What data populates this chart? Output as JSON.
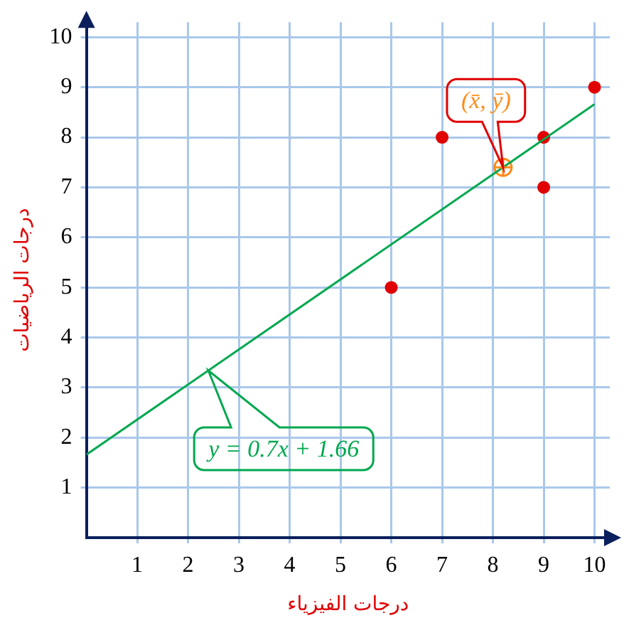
{
  "chart_data": {
    "type": "scatter",
    "xlabel": "درجات الفيزياء",
    "ylabel": "درجات الرياضيات",
    "xlim": [
      0,
      10.3
    ],
    "ylim": [
      0,
      10.3
    ],
    "xticks": [
      1,
      2,
      3,
      4,
      5,
      6,
      7,
      8,
      9,
      10
    ],
    "yticks": [
      1,
      2,
      3,
      4,
      5,
      6,
      7,
      8,
      9,
      10
    ],
    "grid": true,
    "legend": false,
    "marker": "circle",
    "series": [
      {
        "type": "line",
        "color": "#00a84f",
        "x": [
          0,
          10
        ],
        "values": [
          1.66,
          8.66
        ],
        "marker": "none",
        "line_style": "solid"
      },
      {
        "color": "#e00000",
        "x": [
          6,
          7,
          9,
          9,
          10
        ],
        "values": [
          5,
          8,
          8,
          7,
          9
        ]
      },
      {
        "color": "#ff8c1a",
        "x": [
          8.2
        ],
        "values": [
          7.4
        ],
        "marker": "circle"
      }
    ],
    "annotations": [
      {
        "text": "(x̄, ȳ)",
        "x": 8.2,
        "y": 7.4
      },
      {
        "text": "y = 0.7x + 1.66",
        "x": 2.4,
        "y": 3.34
      }
    ]
  }
}
